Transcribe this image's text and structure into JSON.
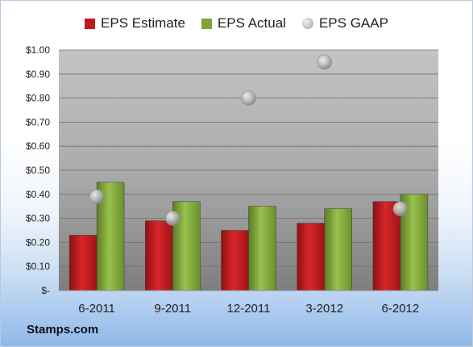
{
  "chart_data": {
    "type": "bar",
    "categories": [
      "6-2011",
      "9-2011",
      "12-2011",
      "3-2012",
      "6-2012"
    ],
    "series": [
      {
        "name": "EPS Estimate",
        "kind": "bar",
        "color": "#c0191b",
        "values": [
          0.23,
          0.29,
          0.25,
          0.28,
          0.37
        ]
      },
      {
        "name": "EPS Actual",
        "kind": "bar",
        "color": "#7fa53a",
        "values": [
          0.45,
          0.37,
          0.35,
          0.34,
          0.4
        ]
      },
      {
        "name": "EPS GAAP",
        "kind": "scatter",
        "color": "#a8a8a8",
        "values": [
          0.39,
          0.3,
          0.8,
          0.95,
          0.34
        ]
      }
    ],
    "y_ticks": [
      "$-",
      "$0.10",
      "$0.20",
      "$0.30",
      "$0.40",
      "$0.50",
      "$0.60",
      "$0.70",
      "$0.80",
      "$0.90",
      "$1.00"
    ],
    "ylim": [
      0,
      1.0
    ],
    "y_step": 0.1,
    "grid": true,
    "legend_position": "top"
  },
  "source_label": "Stamps.com"
}
